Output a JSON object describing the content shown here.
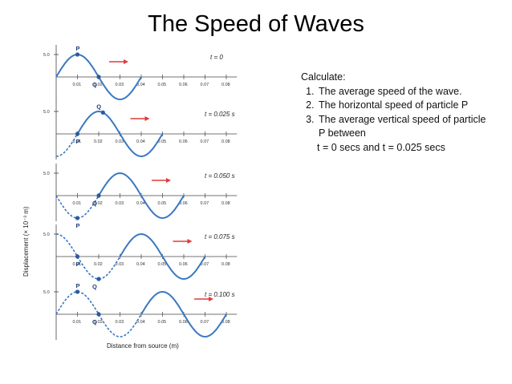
{
  "title": "The Speed of Waves",
  "diagram": {
    "y_axis_label": "Displacement (× 10⁻³ m)",
    "x_axis_label": "Distance from source (m)",
    "amplitude_tick": "5.0",
    "x_ticks": [
      "0.01",
      "0.02",
      "0.03",
      "0.04",
      "0.05",
      "0.06",
      "0.07",
      "0.08"
    ],
    "panels": [
      {
        "time": "t = 0",
        "p": "P",
        "q": "Q"
      },
      {
        "time": "t = 0.025 s",
        "p": "P",
        "q": "Q"
      },
      {
        "time": "t = 0.050 s",
        "p": "P",
        "q": "Q"
      },
      {
        "time": "t = 0.075 s",
        "p": "P",
        "q": "Q"
      },
      {
        "time": "t = 0.100 s",
        "p": "P",
        "q": "Q"
      }
    ],
    "colors": {
      "wave": "#3a78c2",
      "arrow": "#e03a3a",
      "axis": "#444444",
      "point": "#2c5aa0"
    }
  },
  "instructions": {
    "heading": "Calculate:",
    "items": [
      "The average speed of the wave.",
      "The horizontal speed of particle P",
      "The average vertical speed of particle P between"
    ],
    "item3_extra": "t = 0 secs and t = 0.025 secs"
  }
}
